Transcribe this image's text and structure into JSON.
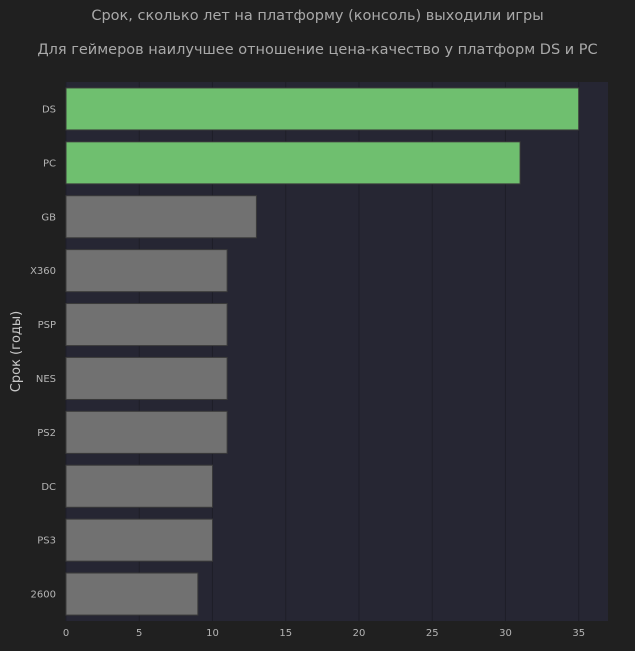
{
  "titles": {
    "line1": "Срок, сколько лет на платформу (консоль) выходили игры",
    "line2": "Для геймеров наилучшее отношение цена-качество у платформ DS и PC"
  },
  "colors": {
    "background": "#202020",
    "plot_background": "#262633",
    "highlight_bar": "#6fbf6f",
    "default_bar": "#717171",
    "grid": "#1e1e28"
  },
  "chart_data": {
    "type": "bar",
    "orientation": "horizontal",
    "title": "Срок, сколько лет на платформу (консоль) выходили игры",
    "subtitle": "Для геймеров наилучшее отношение цена-качество у платформ DS и PC",
    "xlabel": "",
    "ylabel": "Срок (годы)",
    "categories": [
      "DS",
      "PC",
      "GB",
      "X360",
      "PSP",
      "NES",
      "PS2",
      "DC",
      "PS3",
      "2600"
    ],
    "values": [
      35,
      31,
      13,
      11,
      11,
      11,
      11,
      10,
      10,
      9
    ],
    "highlighted": [
      "DS",
      "PC"
    ],
    "xlim": [
      0,
      37
    ],
    "xticks": [
      0,
      5,
      10,
      15,
      20,
      25,
      30,
      35
    ],
    "grid": "vertical"
  }
}
